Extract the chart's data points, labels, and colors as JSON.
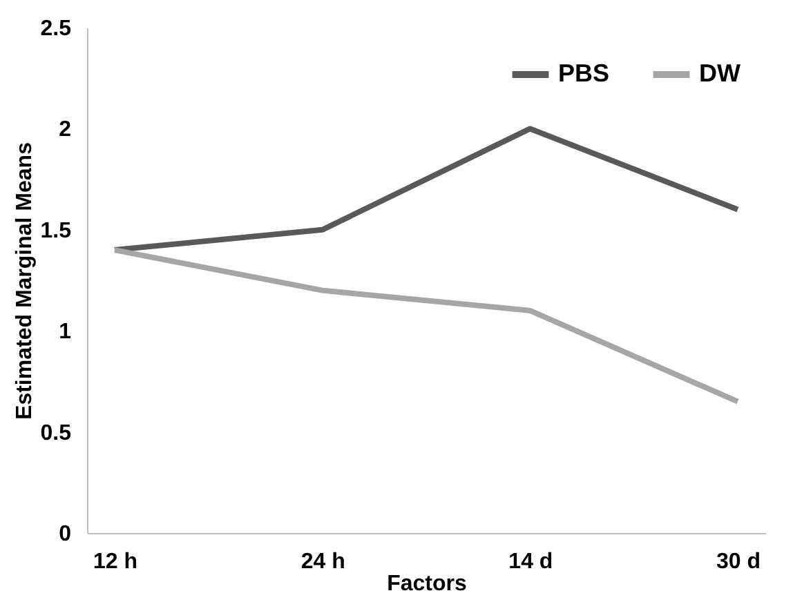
{
  "chart_data": {
    "type": "line",
    "xlabel": "Factors",
    "ylabel": "Estimated Marginal Means",
    "categories": [
      "12 h",
      "24 h",
      "14 d",
      "30 d"
    ],
    "series": [
      {
        "name": "PBS",
        "color": "#595959",
        "values": [
          1.4,
          1.5,
          2.0,
          1.6
        ]
      },
      {
        "name": "DW",
        "color": "#a6a6a6",
        "values": [
          1.4,
          1.2,
          1.1,
          0.65
        ]
      }
    ],
    "ylim": [
      0,
      2.5
    ],
    "yticks": [
      0,
      0.5,
      1,
      1.5,
      2,
      2.5
    ],
    "grid": false,
    "legend": "top right",
    "marker": "none",
    "line_style": "solid"
  }
}
